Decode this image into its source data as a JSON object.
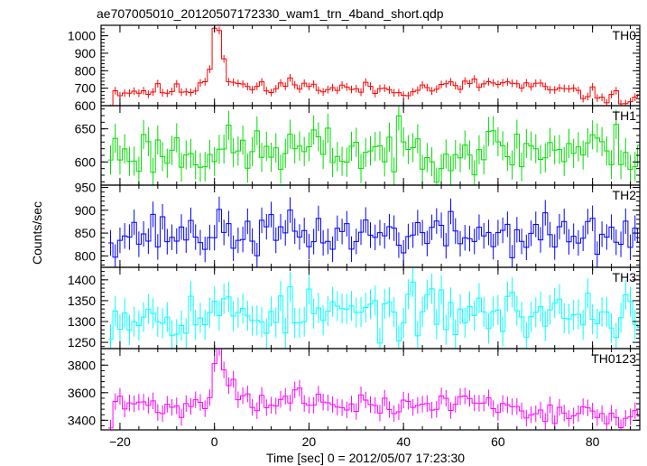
{
  "chart_data": {
    "type": "line",
    "title": "ae707005010_20120507172330_wam1_trn_4band_short.qdp",
    "xlabel": "Time [sec] 0 = 2012/05/07 17:23:30",
    "ylabel": "Counts/sec",
    "xlim": [
      -24,
      90
    ],
    "x_ticks": [
      -20,
      0,
      20,
      40,
      60,
      80
    ],
    "bin_width_sec": 1,
    "grid": false,
    "line_style": "histogram-step-with-error-bars",
    "panels": [
      {
        "name": "TH0",
        "color": "#ff0000",
        "ylim": [
          600,
          1060
        ],
        "y_ticks": [
          600,
          700,
          800,
          900,
          1000
        ],
        "y_tick_labels": [
          "600",
          "700",
          "800",
          "900",
          "1000"
        ],
        "error": 22,
        "keypoints": [
          [
            -22,
            610
          ],
          [
            -21,
            680
          ],
          [
            -5,
            690
          ],
          [
            -2,
            740
          ],
          [
            -1,
            840
          ],
          [
            0,
            1050
          ],
          [
            1,
            1040
          ],
          [
            2,
            880
          ],
          [
            3,
            760
          ],
          [
            6,
            710
          ],
          [
            12,
            690
          ],
          [
            18,
            750
          ],
          [
            20,
            700
          ],
          [
            40,
            690
          ],
          [
            60,
            730
          ],
          [
            90,
            630
          ]
        ],
        "amp": 30,
        "seed": 11
      },
      {
        "name": "TH1",
        "color": "#00dd00",
        "ylim": [
          565,
          685
        ],
        "y_ticks": [
          600,
          650
        ],
        "y_tick_labels": [
          "600",
          "650"
        ],
        "error": 22,
        "keypoints": [
          [
            -22,
            615
          ],
          [
            90,
            620
          ]
        ],
        "amp": 28,
        "seed": 23
      },
      {
        "name": "TH2",
        "color": "#0000ff",
        "ylim": [
          775,
          955
        ],
        "y_ticks": [
          800,
          850,
          900,
          950
        ],
        "y_tick_labels": [
          "800",
          "850",
          "900",
          "950"
        ],
        "error": 28,
        "keypoints": [
          [
            -22,
            850
          ],
          [
            90,
            845
          ]
        ],
        "amp": 35,
        "seed": 37
      },
      {
        "name": "TH3",
        "color": "#00ffff",
        "ylim": [
          1235,
          1430
        ],
        "y_ticks": [
          1250,
          1300,
          1350,
          1400
        ],
        "y_tick_labels": [
          "1250",
          "1300",
          "1350",
          "1400"
        ],
        "error": 36,
        "keypoints": [
          [
            -22,
            1320
          ],
          [
            90,
            1320
          ]
        ],
        "amp": 45,
        "seed": 53
      },
      {
        "name": "TH0123",
        "color": "#ff00ff",
        "ylim": [
          3330,
          3920
        ],
        "y_ticks": [
          3400,
          3600,
          3800
        ],
        "y_tick_labels": [
          "3400",
          "3600",
          "3800"
        ],
        "error": 60,
        "keypoints": [
          [
            -22,
            3350
          ],
          [
            -21,
            3520
          ],
          [
            -5,
            3490
          ],
          [
            -2,
            3540
          ],
          [
            -1,
            3600
          ],
          [
            0,
            3840
          ],
          [
            1,
            3900
          ],
          [
            2,
            3790
          ],
          [
            3,
            3680
          ],
          [
            6,
            3590
          ],
          [
            12,
            3490
          ],
          [
            18,
            3600
          ],
          [
            20,
            3520
          ],
          [
            40,
            3490
          ],
          [
            55,
            3550
          ],
          [
            60,
            3500
          ],
          [
            90,
            3400
          ]
        ],
        "amp": 55,
        "seed": 71
      }
    ]
  }
}
